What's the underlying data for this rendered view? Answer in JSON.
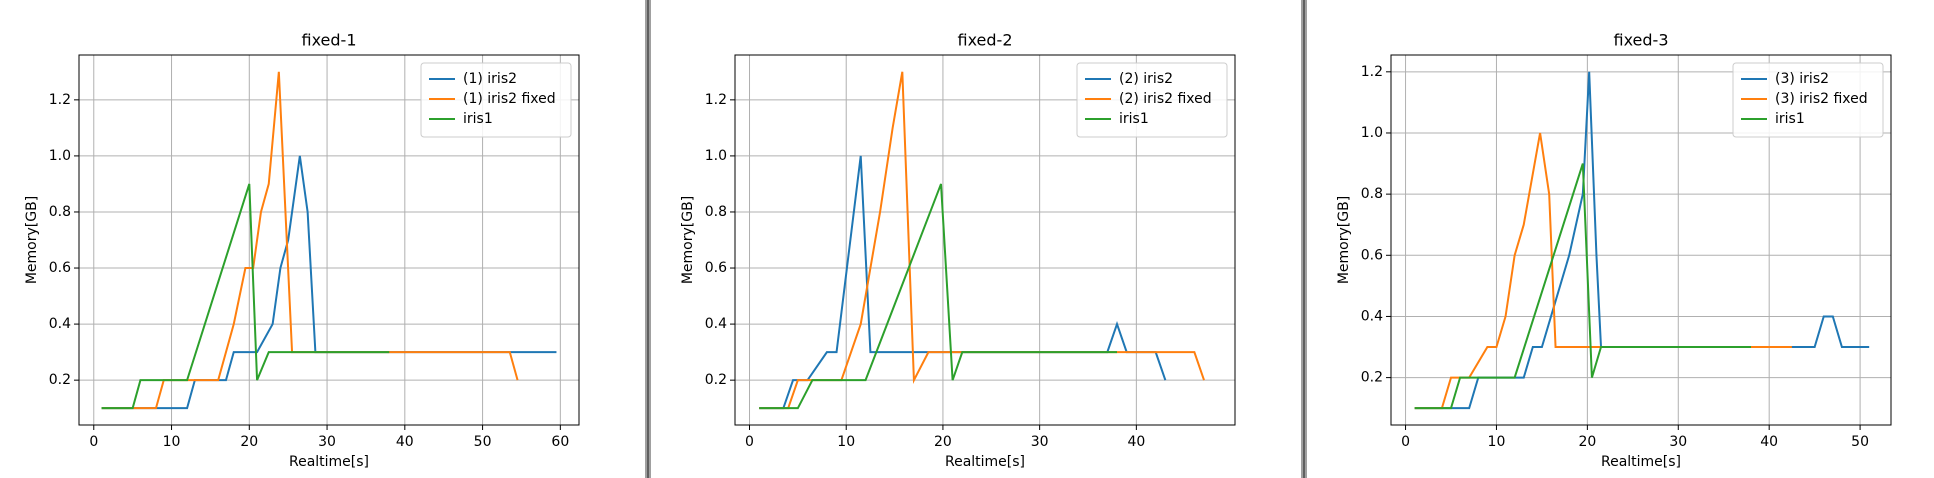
{
  "chart_data": [
    {
      "type": "line",
      "title": "fixed-1",
      "xlabel": "Realtime[s]",
      "ylabel": "Memory[GB]",
      "xlim": [
        -1.9,
        62.4
      ],
      "ylim": [
        0.04,
        1.36
      ],
      "xticks": [
        0,
        10,
        20,
        30,
        40,
        50,
        60
      ],
      "yticks": [
        0.2,
        0.4,
        0.6,
        0.8,
        {
          "value": 1,
          "label": "1.0"
        },
        1.2
      ],
      "grid": true,
      "legend": "upper right",
      "series": [
        {
          "name": "(1) iris2",
          "color": "#1f77b4",
          "x": [
            1,
            12,
            13,
            17,
            18,
            21,
            23,
            24,
            25,
            26.5,
            27.5,
            28.5,
            59.5
          ],
          "values": [
            0.1,
            0.1,
            0.2,
            0.2,
            0.3,
            0.3,
            0.4,
            0.6,
            0.7,
            1.0,
            0.8,
            0.3,
            0.3
          ]
        },
        {
          "name": "(1) iris2 fixed",
          "color": "#ff7f0e",
          "x": [
            1,
            8,
            9,
            16,
            18,
            19.5,
            20.5,
            21.5,
            22.5,
            23.8,
            25.5,
            53.5,
            54.5
          ],
          "values": [
            0.1,
            0.1,
            0.2,
            0.2,
            0.4,
            0.6,
            0.6,
            0.8,
            0.9,
            1.3,
            0.3,
            0.3,
            0.2
          ]
        },
        {
          "name": "iris1",
          "color": "#2ca02c",
          "x": [
            1,
            5,
            6,
            12,
            20,
            21,
            22.5,
            38
          ],
          "values": [
            0.1,
            0.1,
            0.2,
            0.2,
            0.9,
            0.2,
            0.3,
            0.3
          ]
        }
      ]
    },
    {
      "type": "line",
      "title": "fixed-2",
      "xlabel": "Realtime[s]",
      "ylabel": "Memory[GB]",
      "xlim": [
        -1.5,
        50.2
      ],
      "ylim": [
        0.04,
        1.36
      ],
      "xticks": [
        0,
        10,
        20,
        30,
        40
      ],
      "yticks": [
        0.2,
        0.4,
        0.6,
        0.8,
        {
          "value": 1,
          "label": "1.0"
        },
        1.2
      ],
      "grid": true,
      "legend": "upper right",
      "series": [
        {
          "name": "(2) iris2",
          "color": "#1f77b4",
          "x": [
            1,
            3.5,
            4.5,
            6,
            8,
            9,
            11.5,
            12.5,
            37,
            38,
            39,
            42,
            43
          ],
          "values": [
            0.1,
            0.1,
            0.2,
            0.2,
            0.3,
            0.3,
            1.0,
            0.3,
            0.3,
            0.4,
            0.3,
            0.3,
            0.2
          ]
        },
        {
          "name": "(2) iris2 fixed",
          "color": "#ff7f0e",
          "x": [
            1,
            4,
            5,
            9.5,
            11.5,
            13.5,
            14.8,
            15.8,
            17,
            18.5,
            46,
            47
          ],
          "values": [
            0.1,
            0.1,
            0.2,
            0.2,
            0.4,
            0.8,
            1.1,
            1.3,
            0.2,
            0.3,
            0.3,
            0.2
          ]
        },
        {
          "name": "iris1",
          "color": "#2ca02c",
          "x": [
            1,
            5,
            6.5,
            12,
            19.8,
            21,
            22,
            38
          ],
          "values": [
            0.1,
            0.1,
            0.2,
            0.2,
            0.9,
            0.2,
            0.3,
            0.3
          ]
        }
      ]
    },
    {
      "type": "line",
      "title": "fixed-3",
      "xlabel": "Realtime[s]",
      "ylabel": "Memory[GB]",
      "xlim": [
        -1.6,
        53.4
      ],
      "ylim": [
        0.045,
        1.255
      ],
      "xticks": [
        0,
        10,
        20,
        30,
        40,
        50
      ],
      "yticks": [
        0.2,
        0.4,
        0.6,
        0.8,
        {
          "value": 1,
          "label": "1.0"
        },
        1.2
      ],
      "grid": true,
      "legend": "upper right",
      "series": [
        {
          "name": "(3) iris2",
          "color": "#1f77b4",
          "x": [
            1,
            7,
            8,
            13,
            14,
            15,
            16,
            18,
            19.5,
            20.2,
            21,
            21.5,
            45,
            46,
            47,
            48,
            51
          ],
          "values": [
            0.1,
            0.1,
            0.2,
            0.2,
            0.3,
            0.3,
            0.4,
            0.6,
            0.8,
            1.2,
            0.6,
            0.3,
            0.3,
            0.4,
            0.4,
            0.3,
            0.3
          ]
        },
        {
          "name": "(3) iris2 fixed",
          "color": "#ff7f0e",
          "x": [
            1,
            4,
            5,
            7,
            9,
            10,
            11,
            12,
            13,
            14.8,
            15.8,
            16.5,
            42.5
          ],
          "values": [
            0.1,
            0.1,
            0.2,
            0.2,
            0.3,
            0.3,
            0.4,
            0.6,
            0.7,
            1.0,
            0.8,
            0.3,
            0.3
          ]
        },
        {
          "name": "iris1",
          "color": "#2ca02c",
          "x": [
            1,
            5,
            6,
            12,
            19.5,
            20.5,
            21.5,
            38
          ],
          "values": [
            0.1,
            0.1,
            0.2,
            0.2,
            0.9,
            0.2,
            0.3,
            0.3
          ]
        }
      ]
    }
  ]
}
